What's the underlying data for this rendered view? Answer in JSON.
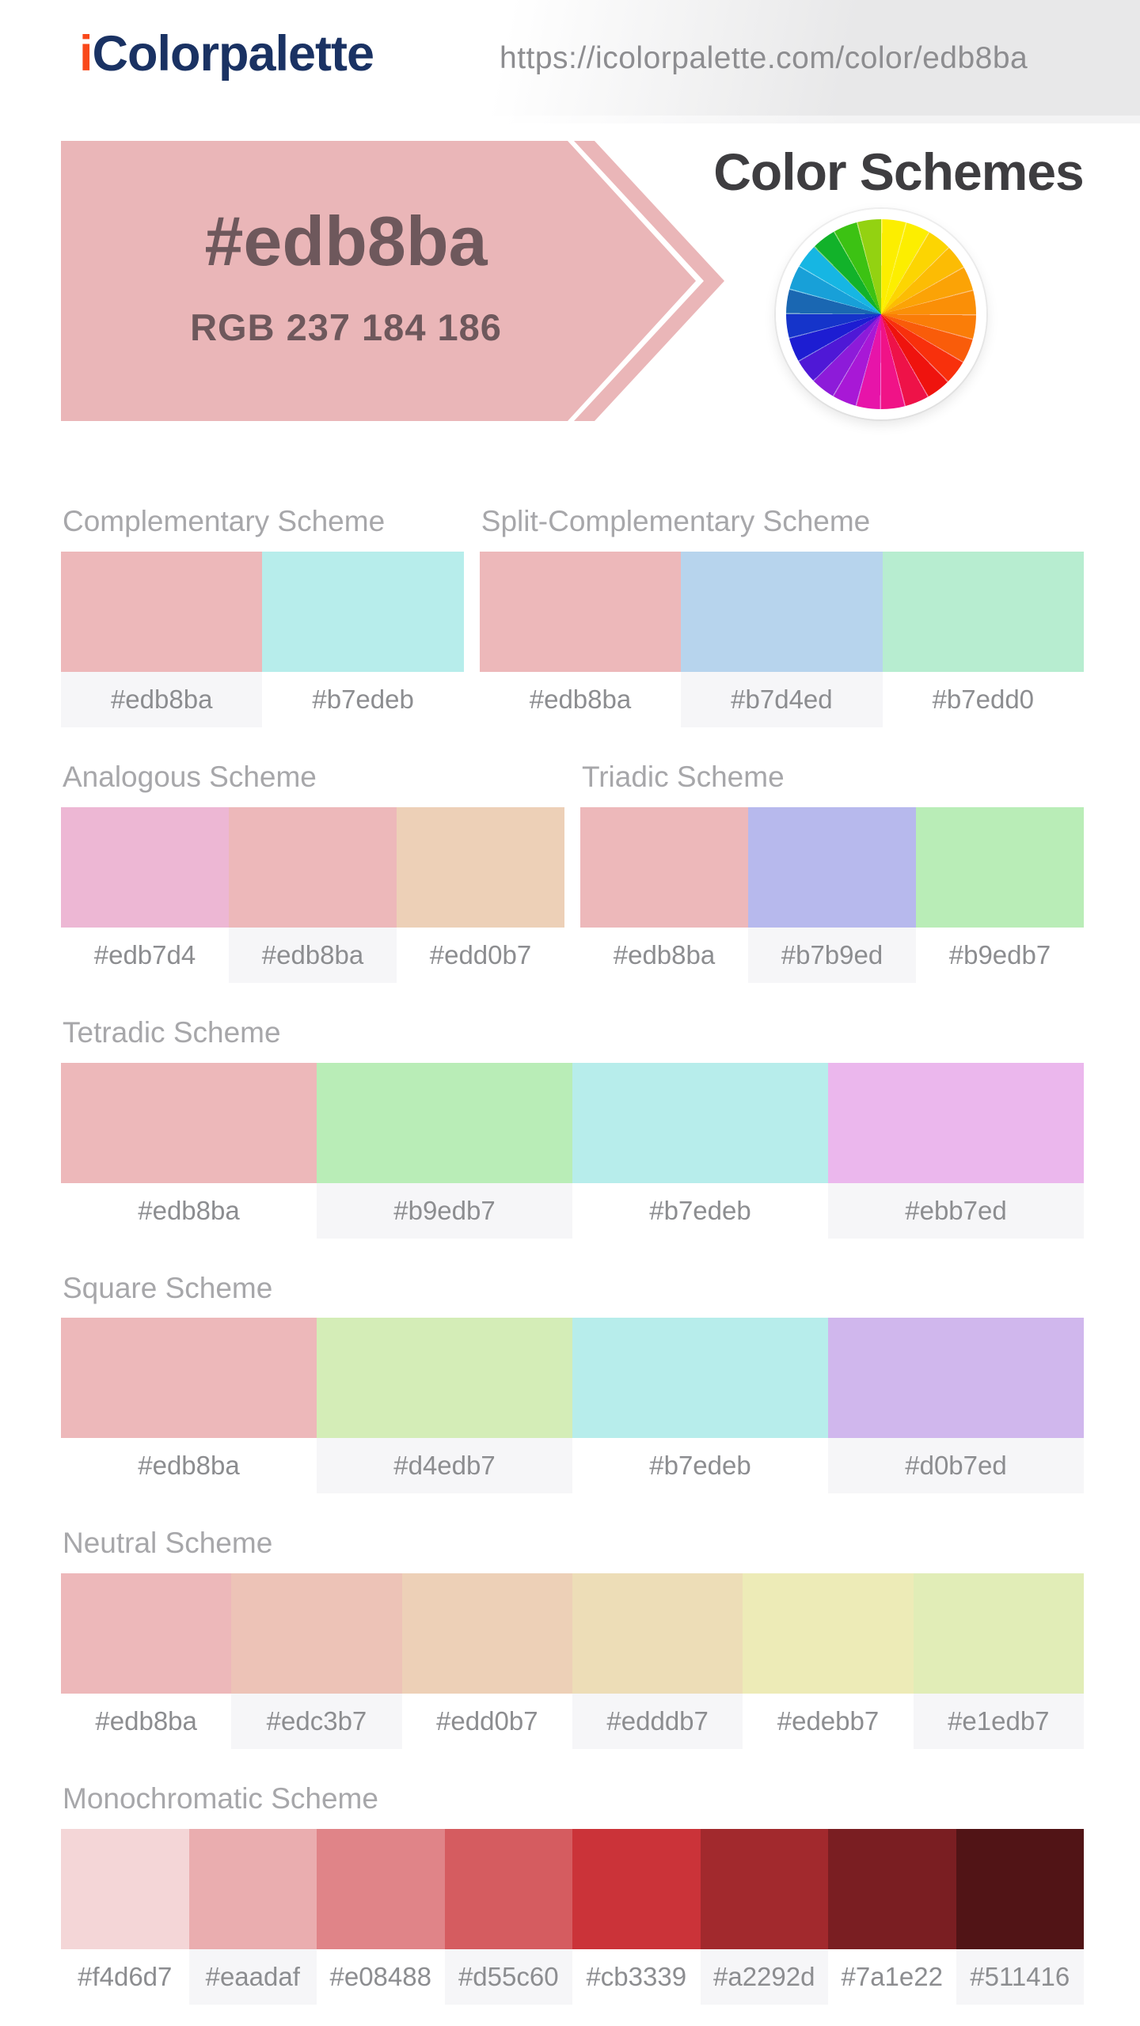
{
  "header": {
    "logo_i": "i",
    "logo_rest": "Colorpalette",
    "url": "https://icolorpalette.com/color/edb8ba"
  },
  "hero": {
    "hex": "#edb8ba",
    "rgb": "RGB 237 184 186",
    "title": "Color Schemes",
    "banner_color": "#eab6b8",
    "banner_text_color": "#6e585c",
    "wheel_icon": "color-wheel-icon",
    "wheel_colors": [
      "#fcee00",
      "#fcee00",
      "#fcd502",
      "#fcbc04",
      "#fba306",
      "#fa8f07",
      "#fa7d08",
      "#f95c0a",
      "#f8300c",
      "#ef130e",
      "#ee1248",
      "#f01387",
      "#e714a9",
      "#a818d6",
      "#8d1bd9",
      "#4f18d6",
      "#1d1dd2",
      "#1534ca",
      "#1a67b2",
      "#18a0d8",
      "#16b6e3",
      "#12b22a",
      "#3cc213",
      "#93d211"
    ]
  },
  "schemes": [
    {
      "name": "Complementary Scheme",
      "colors": [
        "#edb8ba",
        "#b7edeb"
      ],
      "shaded_cells": [
        0
      ]
    },
    {
      "name": "Split-Complementary Scheme",
      "colors": [
        "#edb8ba",
        "#b7d4ed",
        "#b7edd0"
      ],
      "shaded_cells": [
        1
      ]
    },
    {
      "name": "Analogous Scheme",
      "colors": [
        "#edb7d4",
        "#edb8ba",
        "#edd0b7"
      ],
      "shaded_cells": [
        1
      ]
    },
    {
      "name": "Triadic Scheme",
      "colors": [
        "#edb8ba",
        "#b7b9ed",
        "#b9edb7"
      ],
      "shaded_cells": [
        1
      ]
    },
    {
      "name": "Tetradic Scheme",
      "colors": [
        "#edb8ba",
        "#b9edb7",
        "#b7edeb",
        "#ebb7ed"
      ],
      "shaded_cells": [
        1,
        3
      ]
    },
    {
      "name": "Square Scheme",
      "colors": [
        "#edb8ba",
        "#d4edb7",
        "#b7edeb",
        "#d0b7ed"
      ],
      "shaded_cells": [
        1,
        3
      ]
    },
    {
      "name": "Neutral Scheme",
      "colors": [
        "#edb8ba",
        "#edc3b7",
        "#edd0b7",
        "#edddb7",
        "#edebb7",
        "#e1edb7"
      ],
      "shaded_cells": [
        1,
        3,
        5
      ]
    },
    {
      "name": "Monochromatic Scheme",
      "colors": [
        "#f4d6d7",
        "#eaadaf",
        "#e08488",
        "#d55c60",
        "#cb3339",
        "#a2292d",
        "#7a1e22",
        "#511416"
      ],
      "shaded_cells": [
        1,
        3,
        5,
        7
      ]
    }
  ],
  "layout": {
    "rows": [
      [
        0,
        1
      ],
      [
        2,
        3
      ],
      [
        4
      ],
      [
        5
      ],
      [
        6
      ],
      [
        7
      ]
    ]
  }
}
